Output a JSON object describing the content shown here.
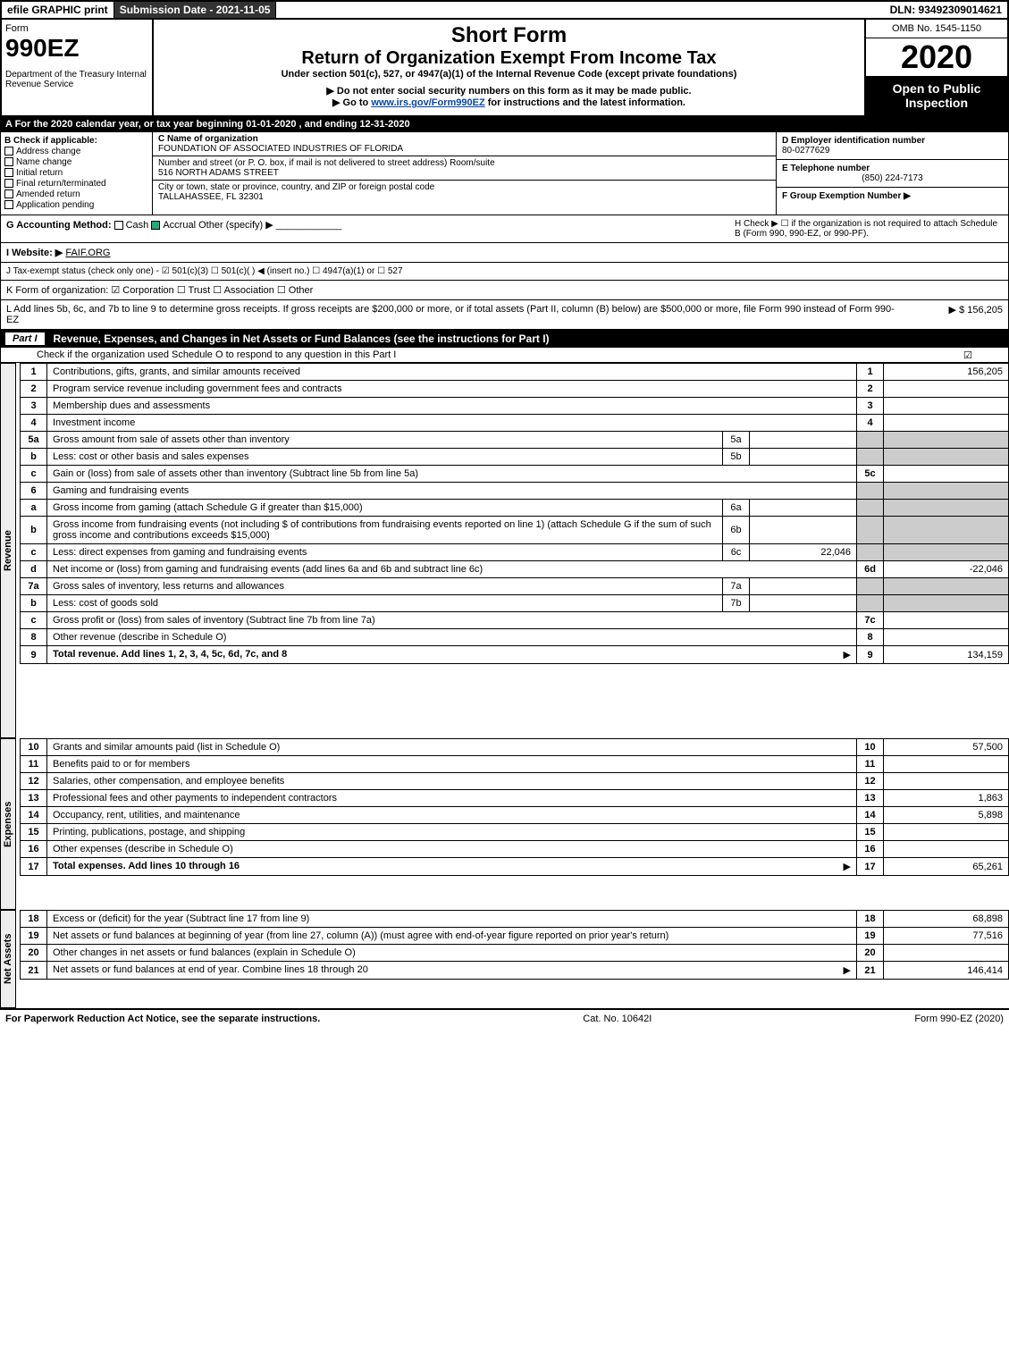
{
  "topbar": {
    "efile": "efile GRAPHIC print",
    "subdate": "Submission Date - 2021-11-05",
    "dln": "DLN: 93492309014621"
  },
  "header": {
    "form_label": "Form",
    "form_num": "990EZ",
    "dept": "Department of the Treasury Internal Revenue Service",
    "short": "Short Form",
    "ret": "Return of Organization Exempt From Income Tax",
    "under": "Under section 501(c), 527, or 4947(a)(1) of the Internal Revenue Code (except private foundations)",
    "note1": "▶ Do not enter social security numbers on this form as it may be made public.",
    "note2_pre": "▶ Go to ",
    "note2_link": "www.irs.gov/Form990EZ",
    "note2_post": " for instructions and the latest information.",
    "omb": "OMB No. 1545-1150",
    "year": "2020",
    "open": "Open to Public Inspection"
  },
  "lineA": "A For the 2020 calendar year, or tax year beginning 01-01-2020 , and ending 12-31-2020",
  "B": {
    "title": "B Check if applicable:",
    "opts": [
      "Address change",
      "Name change",
      "Initial return",
      "Final return/terminated",
      "Amended return",
      "Application pending"
    ]
  },
  "C": {
    "name_lbl": "C Name of organization",
    "name": "FOUNDATION OF ASSOCIATED INDUSTRIES OF FLORIDA",
    "addr_lbl": "Number and street (or P. O. box, if mail is not delivered to street address)     Room/suite",
    "addr": "516 NORTH ADAMS STREET",
    "city_lbl": "City or town, state or province, country, and ZIP or foreign postal code",
    "city": "TALLAHASSEE, FL  32301"
  },
  "D": {
    "ein_lbl": "D Employer identification number",
    "ein": "80-0277629",
    "tel_lbl": "E Telephone number",
    "tel": "(850) 224-7173",
    "grp_lbl": "F Group Exemption Number  ▶"
  },
  "G": {
    "label": "G Accounting Method:",
    "cash": "Cash",
    "accrual": "Accrual",
    "other": "Other (specify) ▶"
  },
  "H": "H  Check ▶ ☐ if the organization is not required to attach Schedule B (Form 990, 990-EZ, or 990-PF).",
  "I": {
    "label": "I Website: ▶",
    "val": "FAIF.ORG"
  },
  "J": "J Tax-exempt status (check only one) - ☑ 501(c)(3) ☐ 501(c)(  ) ◀ (insert no.) ☐ 4947(a)(1) or ☐ 527",
  "K": "K Form of organization:  ☑ Corporation  ☐ Trust  ☐ Association  ☐ Other",
  "L": {
    "text": "L Add lines 5b, 6c, and 7b to line 9 to determine gross receipts. If gross receipts are $200,000 or more, or if total assets (Part II, column (B) below) are $500,000 or more, file Form 990 instead of Form 990-EZ",
    "amt": "▶ $ 156,205"
  },
  "part1": {
    "num": "Part I",
    "title": "Revenue, Expenses, and Changes in Net Assets or Fund Balances (see the instructions for Part I)",
    "sub": "Check if the organization used Schedule O to respond to any question in this Part I",
    "sub_chk": "☑"
  },
  "side_labels": {
    "rev": "Revenue",
    "exp": "Expenses",
    "net": "Net Assets"
  },
  "lines": [
    {
      "n": "1",
      "d": "Contributions, gifts, grants, and similar amounts received",
      "r": "1",
      "v": "156,205"
    },
    {
      "n": "2",
      "d": "Program service revenue including government fees and contracts",
      "r": "2",
      "v": ""
    },
    {
      "n": "3",
      "d": "Membership dues and assessments",
      "r": "3",
      "v": ""
    },
    {
      "n": "4",
      "d": "Investment income",
      "r": "4",
      "v": ""
    },
    {
      "n": "5a",
      "d": "Gross amount from sale of assets other than inventory",
      "sub": "5a",
      "subv": ""
    },
    {
      "n": "b",
      "d": "Less: cost or other basis and sales expenses",
      "sub": "5b",
      "subv": ""
    },
    {
      "n": "c",
      "d": "Gain or (loss) from sale of assets other than inventory (Subtract line 5b from line 5a)",
      "r": "5c",
      "v": ""
    },
    {
      "n": "6",
      "d": "Gaming and fundraising events",
      "shade": true
    },
    {
      "n": "a",
      "d": "Gross income from gaming (attach Schedule G if greater than $15,000)",
      "sub": "6a",
      "subv": ""
    },
    {
      "n": "b",
      "d": "Gross income from fundraising events (not including $                     of contributions from fundraising events reported on line 1) (attach Schedule G if the sum of such gross income and contributions exceeds $15,000)",
      "sub": "6b",
      "subv": ""
    },
    {
      "n": "c",
      "d": "Less: direct expenses from gaming and fundraising events",
      "sub": "6c",
      "subv": "22,046"
    },
    {
      "n": "d",
      "d": "Net income or (loss) from gaming and fundraising events (add lines 6a and 6b and subtract line 6c)",
      "r": "6d",
      "v": "-22,046"
    },
    {
      "n": "7a",
      "d": "Gross sales of inventory, less returns and allowances",
      "sub": "7a",
      "subv": ""
    },
    {
      "n": "b",
      "d": "Less: cost of goods sold",
      "sub": "7b",
      "subv": ""
    },
    {
      "n": "c",
      "d": "Gross profit or (loss) from sales of inventory (Subtract line 7b from line 7a)",
      "r": "7c",
      "v": ""
    },
    {
      "n": "8",
      "d": "Other revenue (describe in Schedule O)",
      "r": "8",
      "v": ""
    },
    {
      "n": "9",
      "d": "Total revenue. Add lines 1, 2, 3, 4, 5c, 6d, 7c, and 8",
      "r": "9",
      "v": "134,159",
      "bold": true,
      "arrow": true
    }
  ],
  "exp_lines": [
    {
      "n": "10",
      "d": "Grants and similar amounts paid (list in Schedule O)",
      "r": "10",
      "v": "57,500"
    },
    {
      "n": "11",
      "d": "Benefits paid to or for members",
      "r": "11",
      "v": ""
    },
    {
      "n": "12",
      "d": "Salaries, other compensation, and employee benefits",
      "r": "12",
      "v": ""
    },
    {
      "n": "13",
      "d": "Professional fees and other payments to independent contractors",
      "r": "13",
      "v": "1,863"
    },
    {
      "n": "14",
      "d": "Occupancy, rent, utilities, and maintenance",
      "r": "14",
      "v": "5,898"
    },
    {
      "n": "15",
      "d": "Printing, publications, postage, and shipping",
      "r": "15",
      "v": ""
    },
    {
      "n": "16",
      "d": "Other expenses (describe in Schedule O)",
      "r": "16",
      "v": ""
    },
    {
      "n": "17",
      "d": "Total expenses. Add lines 10 through 16",
      "r": "17",
      "v": "65,261",
      "bold": true,
      "arrow": true
    }
  ],
  "net_lines": [
    {
      "n": "18",
      "d": "Excess or (deficit) for the year (Subtract line 17 from line 9)",
      "r": "18",
      "v": "68,898"
    },
    {
      "n": "19",
      "d": "Net assets or fund balances at beginning of year (from line 27, column (A)) (must agree with end-of-year figure reported on prior year's return)",
      "r": "19",
      "v": "77,516"
    },
    {
      "n": "20",
      "d": "Other changes in net assets or fund balances (explain in Schedule O)",
      "r": "20",
      "v": ""
    },
    {
      "n": "21",
      "d": "Net assets or fund balances at end of year. Combine lines 18 through 20",
      "r": "21",
      "v": "146,414",
      "arrow": true
    }
  ],
  "footer": {
    "l": "For Paperwork Reduction Act Notice, see the separate instructions.",
    "m": "Cat. No. 10642I",
    "r": "Form 990-EZ (2020)"
  }
}
